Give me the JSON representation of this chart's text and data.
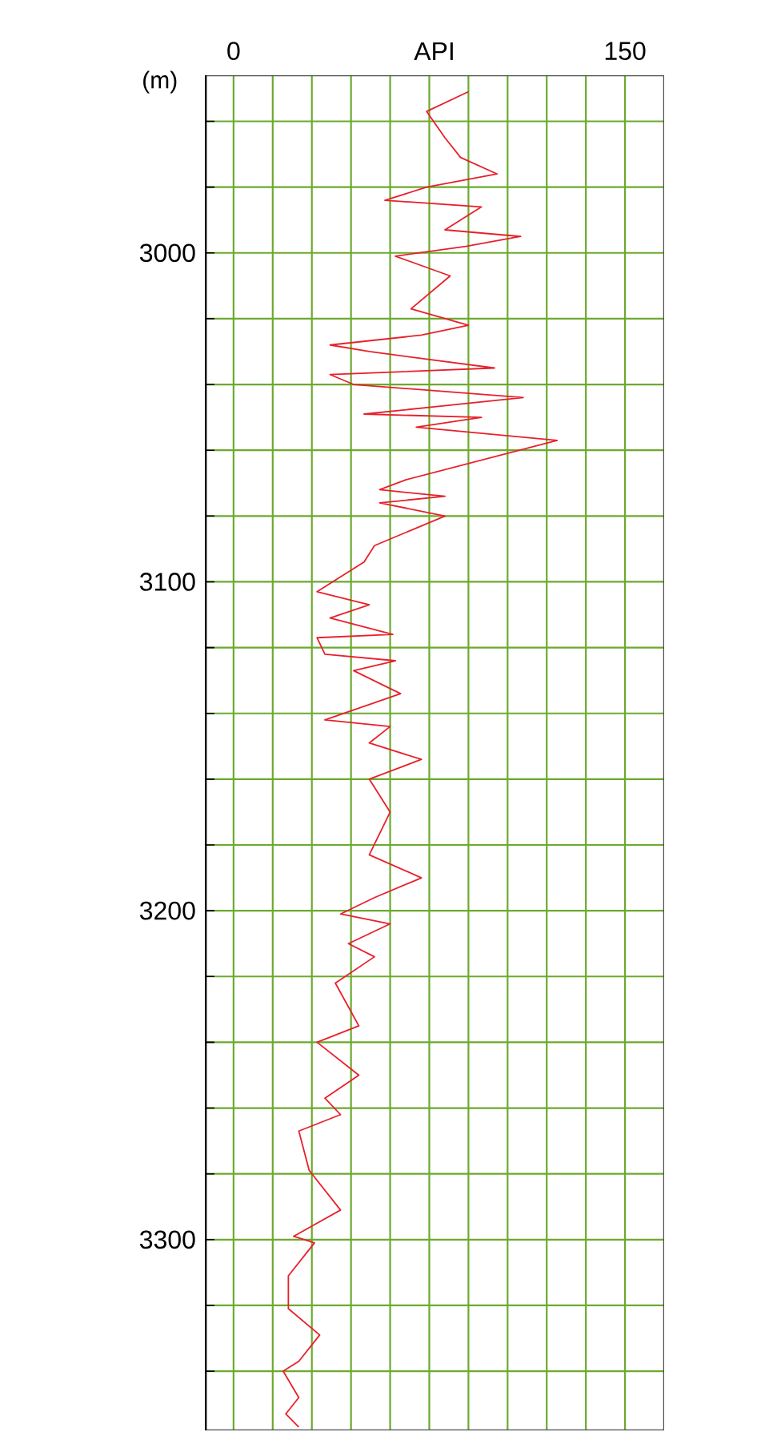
{
  "chart_data": {
    "type": "line",
    "xlabel": "API",
    "ylabel": "(m)",
    "xlim": [
      -11,
      165
    ],
    "ylim": [
      3358,
      2946
    ],
    "xticks": [
      0,
      {
        "value": 15,
        "label": null
      },
      {
        "value": 30,
        "label": null
      },
      {
        "value": 45,
        "label": null
      },
      {
        "value": 60,
        "label": null
      },
      {
        "value": 75,
        "label": null
      },
      {
        "value": 90,
        "label": null
      },
      {
        "value": 105,
        "label": null
      },
      {
        "value": 120,
        "label": null
      },
      {
        "value": 135,
        "label": null
      },
      150
    ],
    "yticks": [
      {
        "value": 2960,
        "label": null
      },
      {
        "value": 2980,
        "label": null
      },
      3000,
      {
        "value": 3020,
        "label": null
      },
      {
        "value": 3040,
        "label": null
      },
      {
        "value": 3060,
        "label": null
      },
      {
        "value": 3080,
        "label": null
      },
      3100,
      {
        "value": 3120,
        "label": null
      },
      {
        "value": 3140,
        "label": null
      },
      {
        "value": 3160,
        "label": null
      },
      {
        "value": 3180,
        "label": null
      },
      3200,
      {
        "value": 3220,
        "label": null
      },
      {
        "value": 3240,
        "label": null
      },
      {
        "value": 3260,
        "label": null
      },
      {
        "value": 3280,
        "label": null
      },
      3300,
      {
        "value": 3320,
        "label": null
      },
      {
        "value": 3340,
        "label": null
      }
    ],
    "grid": true,
    "series": [
      {
        "color": "#e8202a",
        "x": [
          90,
          74,
          81,
          87,
          101,
          74,
          58,
          95,
          81,
          110,
          89,
          62,
          83,
          68,
          90,
          72,
          37,
          52,
          100,
          37,
          46,
          111,
          50,
          95,
          70,
          124,
          66,
          56,
          81,
          56,
          81,
          54,
          50,
          32,
          52,
          37,
          61,
          32,
          35,
          62,
          46,
          64,
          35,
          60,
          52,
          72,
          52,
          60,
          52,
          72,
          54,
          41,
          60,
          44,
          54,
          39,
          48,
          32,
          48,
          35,
          41,
          25,
          29,
          41,
          23,
          31,
          21,
          21,
          33,
          25,
          19,
          25,
          20,
          25
        ],
        "values": [
          2951,
          2957,
          2965,
          2971,
          2976,
          2980,
          2984,
          2986,
          2993,
          2995,
          2998,
          3001,
          3007,
          3017,
          3022,
          3025,
          3028,
          3030,
          3035,
          3037,
          3040,
          3044,
          3049,
          3050,
          3053,
          3057,
          3069,
          3072,
          3074,
          3076,
          3080,
          3089,
          3094,
          3103,
          3107,
          3111,
          3116,
          3117,
          3122,
          3124,
          3127,
          3134,
          3142,
          3144,
          3149,
          3154,
          3160,
          3170,
          3183,
          3190,
          3196,
          3201,
          3204,
          3210,
          3214,
          3222,
          3235,
          3240,
          3250,
          3257,
          3262,
          3267,
          3279,
          3291,
          3299,
          3301,
          3311,
          3321,
          3329,
          3337,
          3340,
          3348,
          3353,
          3357
        ]
      }
    ]
  }
}
